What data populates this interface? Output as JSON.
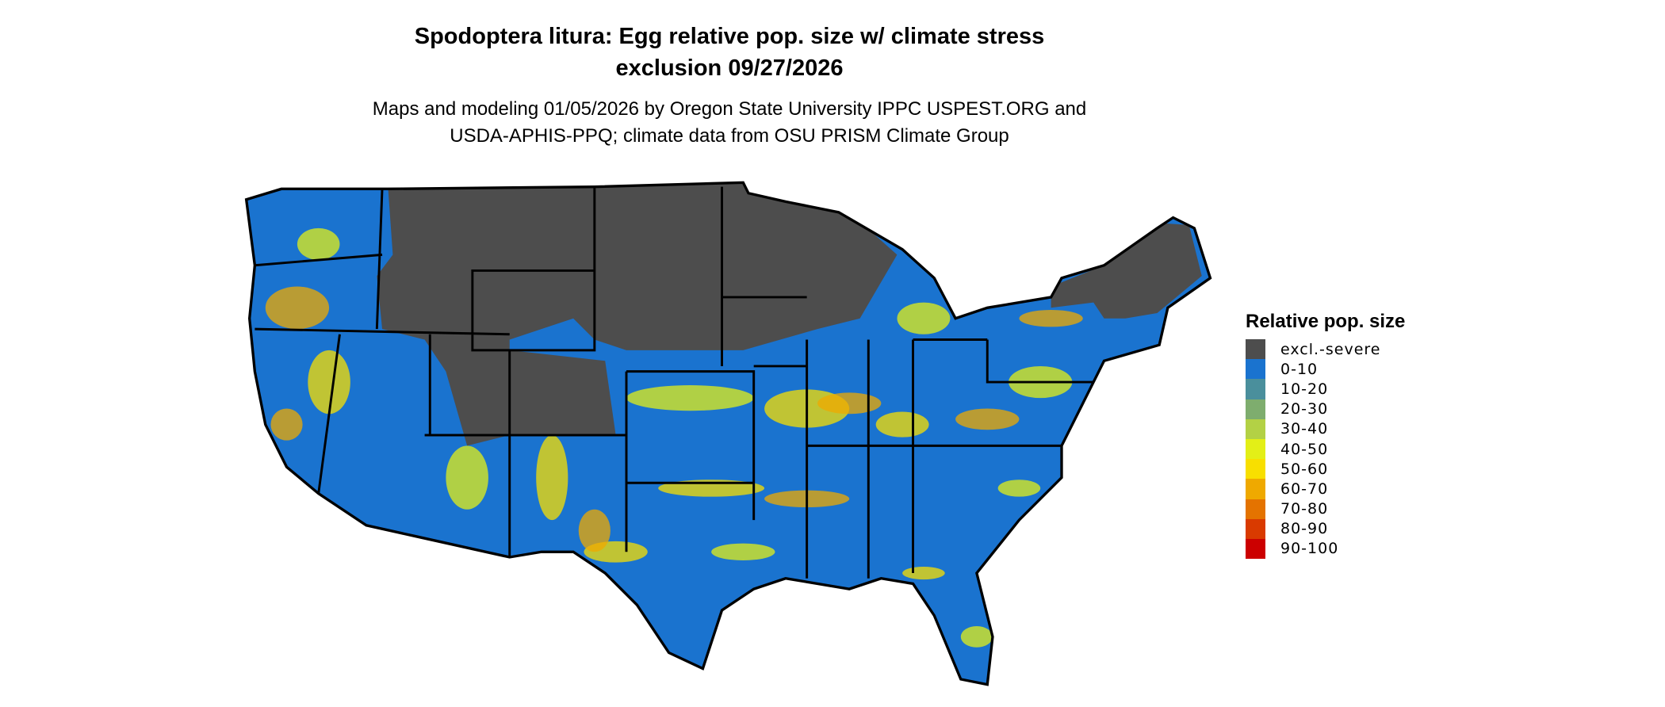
{
  "title": {
    "line1": "Spodoptera litura: Egg relative pop. size w/ climate stress",
    "line2": "exclusion 09/27/2026"
  },
  "subtitle": {
    "line1": "Maps and modeling 01/05/2026 by Oregon State University IPPC USPEST.ORG and",
    "line2": "USDA-APHIS-PPQ; climate data from OSU PRISM Climate Group"
  },
  "map": {
    "region": "Contiguous United States",
    "state_borders": true,
    "dominant_class": "0-10",
    "excluded_regions": "northern plains, upper Midwest, northern New England, parts of interior West"
  },
  "legend": {
    "title": "Relative pop. size",
    "items": [
      {
        "label": "excl.-severe",
        "color": "#4d4d4d"
      },
      {
        "label": "0-10",
        "color": "#1a73cf"
      },
      {
        "label": "10-20",
        "color": "#4a8f9c"
      },
      {
        "label": "20-30",
        "color": "#7ead6e"
      },
      {
        "label": "30-40",
        "color": "#b3d145"
      },
      {
        "label": "40-50",
        "color": "#e3ef17"
      },
      {
        "label": "50-60",
        "color": "#f8df00"
      },
      {
        "label": "60-70",
        "color": "#efa900"
      },
      {
        "label": "70-80",
        "color": "#e47300"
      },
      {
        "label": "80-90",
        "color": "#d93a00"
      },
      {
        "label": "90-100",
        "color": "#cc0000"
      }
    ]
  }
}
